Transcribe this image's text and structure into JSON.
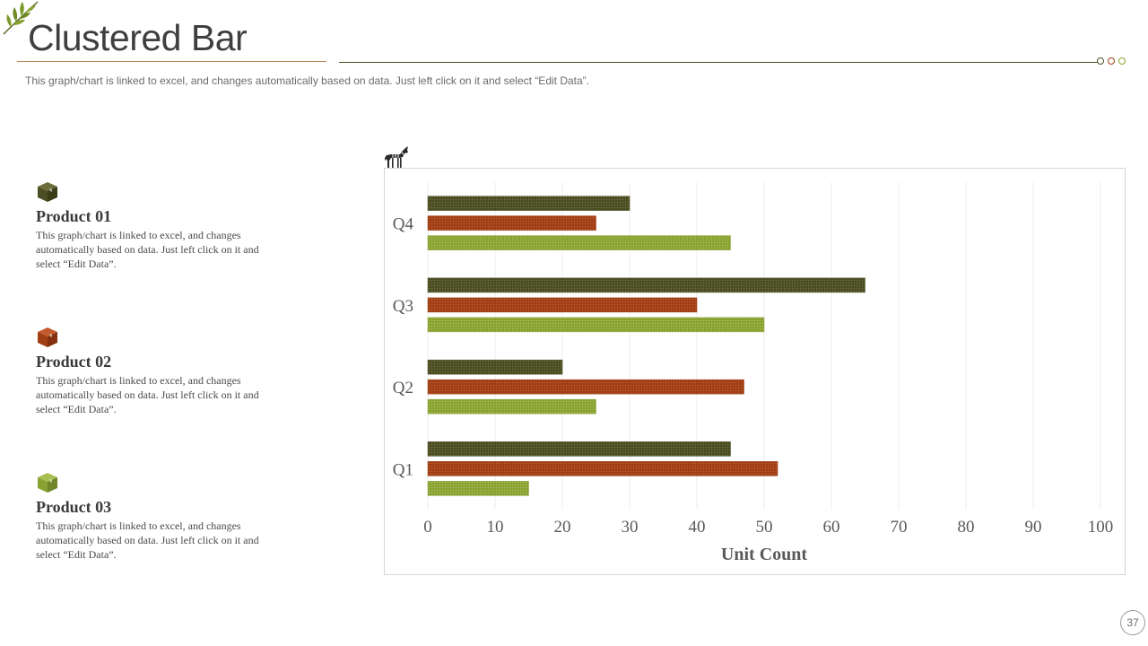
{
  "slide": {
    "title": "Clustered Bar",
    "subtitle": "This graph/chart is linked to excel, and changes automatically based on data. Just left click on it and select “Edit Data”.",
    "page_number": "37"
  },
  "products": [
    {
      "name": "Product 01",
      "description": "This graph/chart  is linked to excel, and changes automatically based on data. Just left click on it and select “Edit Data”.",
      "color": "#4b4d22",
      "icon": "box-icon"
    },
    {
      "name": "Product 02",
      "description": "This graph/chart  is linked to excel, and changes automatically based on data. Just left click on it and select “Edit Data”.",
      "color": "#a03e15",
      "icon": "box-icon"
    },
    {
      "name": "Product 03",
      "description": "This graph/chart  is linked to excel, and changes automatically based on data. Just left click on it and select “Edit Data”.",
      "color": "#8aa232",
      "icon": "box-icon"
    }
  ],
  "colors": {
    "accent_dark": "#4b4d22",
    "accent_rust": "#a03e15",
    "accent_green": "#8aa232",
    "title_text": "#3f3f3f"
  },
  "chart_data": {
    "type": "bar",
    "orientation": "horizontal",
    "categories": [
      "Q1",
      "Q2",
      "Q3",
      "Q4"
    ],
    "series": [
      {
        "name": "Product 01",
        "values": [
          45,
          20,
          65,
          30
        ],
        "color": "#4b4d22"
      },
      {
        "name": "Product 02",
        "values": [
          52,
          47,
          40,
          25
        ],
        "color": "#a03e15"
      },
      {
        "name": "Product 03",
        "values": [
          15,
          25,
          50,
          45
        ],
        "color": "#8aa232"
      }
    ],
    "xlabel": "Unit Count",
    "ylabel": "",
    "xlim": [
      0,
      100
    ],
    "xticks": [
      0,
      10,
      20,
      30,
      40,
      50,
      60,
      70,
      80,
      90,
      100
    ],
    "grid": "vertical",
    "legend": "none"
  }
}
